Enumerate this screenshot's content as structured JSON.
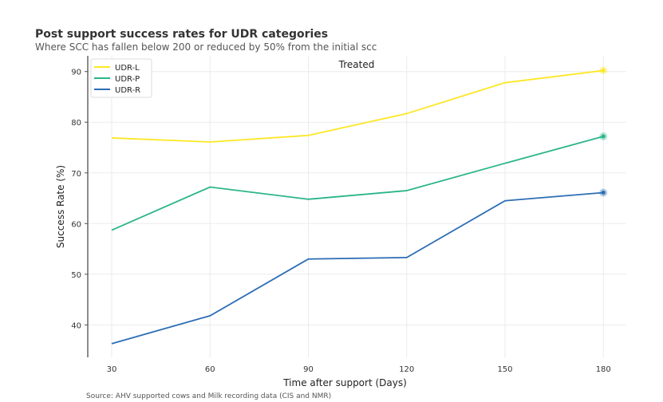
{
  "title": "Post support success rates for UDR categories",
  "subtitle": "Where SCC has fallen below 200 or reduced by 50% from the initial scc",
  "source": "Source: AHV supported cows and Milk recording data (CIS and NMR)",
  "chart_data": {
    "type": "line",
    "panel_title": "Treated",
    "xlabel": "Time after support (Days)",
    "ylabel": "Success Rate (%)",
    "x": [
      30,
      60,
      90,
      120,
      150,
      180
    ],
    "xticks": [
      30,
      60,
      90,
      120,
      150,
      180
    ],
    "yticks": [
      40,
      50,
      60,
      70,
      80,
      90
    ],
    "xlim": [
      22.7,
      187
    ],
    "ylim": [
      33.6,
      93.1
    ],
    "grid": true,
    "legend_position": "top-left",
    "end_markers": true,
    "series": [
      {
        "name": "UDR-L",
        "color": "#fde725",
        "values": [
          76.9,
          76.1,
          77.4,
          81.7,
          87.8,
          90.2
        ]
      },
      {
        "name": "UDR-P",
        "color": "#2ab58a",
        "values": [
          58.7,
          67.2,
          64.8,
          66.5,
          71.9,
          77.2
        ]
      },
      {
        "name": "UDR-R",
        "color": "#2c6db5",
        "values": [
          36.3,
          41.8,
          53.0,
          53.3,
          64.5,
          66.1
        ]
      }
    ]
  }
}
